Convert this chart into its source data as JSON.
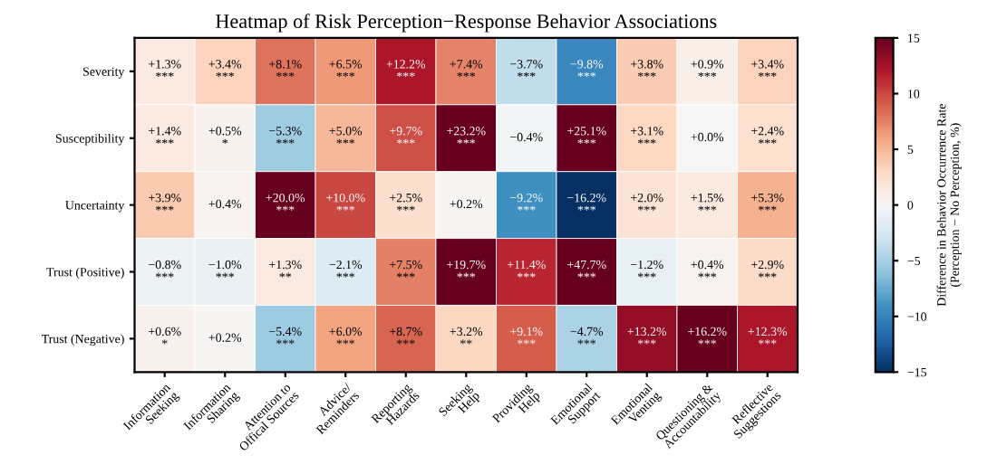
{
  "chart_data": {
    "type": "heatmap",
    "title": "Heatmap of Risk Perception−Response Behavior Associations",
    "clabel": "Difference in Behavior Occurrence Rate\n(Perception − No Perception, %)",
    "categories": [
      "Information\nSeeking",
      "Information\nSharing",
      "Attention to\nOffical Sources",
      "Advice/\nReminders",
      "Reporting\nHazards",
      "Seeking\nHelp",
      "Providing\nHelp",
      "Emotional\nSupport",
      "Emotional\nVenting",
      "Questioning &\nAccountability",
      "Reflective\nSuggestions"
    ],
    "y_categories": [
      "Severity",
      "Susceptibility",
      "Uncertainty",
      "Trust (Positive)",
      "Trust (Negative)"
    ],
    "cells": [
      [
        1.3,
        3.4,
        8.1,
        6.5,
        12.2,
        7.4,
        -3.7,
        -9.8,
        3.8,
        0.9,
        3.4
      ],
      [
        1.4,
        0.5,
        -5.3,
        5.0,
        9.7,
        23.2,
        -0.4,
        25.1,
        3.1,
        0.0,
        2.4
      ],
      [
        3.9,
        0.4,
        20.0,
        10.0,
        2.5,
        0.2,
        -9.2,
        -16.2,
        2.0,
        1.5,
        5.3
      ],
      [
        -0.8,
        -1.0,
        1.3,
        -2.1,
        7.5,
        19.7,
        11.4,
        47.7,
        -1.2,
        0.4,
        2.9
      ],
      [
        0.6,
        0.2,
        -5.4,
        6.0,
        8.7,
        3.2,
        9.1,
        -4.7,
        13.2,
        16.2,
        12.3
      ]
    ],
    "cell_labels": [
      [
        "+1.3%\n***",
        "+3.4%\n***",
        "+8.1%\n***",
        "+6.5%\n***",
        "+12.2%\n***",
        "+7.4%\n***",
        "−3.7%\n***",
        "−9.8%\n***",
        "+3.8%\n***",
        "+0.9%\n***",
        "+3.4%\n***"
      ],
      [
        "+1.4%\n***",
        "+0.5%\n*",
        "−5.3%\n***",
        "+5.0%\n***",
        "+9.7%\n***",
        "+23.2%\n***",
        "−0.4%",
        "+25.1%\n***",
        "+3.1%\n***",
        "+0.0%",
        "+2.4%\n***"
      ],
      [
        "+3.9%\n***",
        "+0.4%",
        "+20.0%\n***",
        "+10.0%\n***",
        "+2.5%\n***",
        "+0.2%",
        "−9.2%\n***",
        "−16.2%\n***",
        "+2.0%\n***",
        "+1.5%\n***",
        "+5.3%\n***"
      ],
      [
        "−0.8%\n***",
        "−1.0%\n***",
        "+1.3%\n**",
        "−2.1%\n***",
        "+7.5%\n***",
        "+19.7%\n***",
        "+11.4%\n***",
        "+47.7%\n***",
        "−1.2%\n***",
        "+0.4%\n***",
        "+2.9%\n***"
      ],
      [
        "+0.6%\n*",
        "+0.2%",
        "−5.4%\n***",
        "+6.0%\n***",
        "+8.7%\n***",
        "+3.2%\n**",
        "+9.1%\n***",
        "−4.7%\n***",
        "+13.2%\n***",
        "+16.2%\n***",
        "+12.3%\n***"
      ]
    ],
    "clim": [
      -15,
      15
    ],
    "cticks": [
      {
        "value": -15,
        "label": "−15"
      },
      {
        "value": -10,
        "label": "−10"
      },
      {
        "value": -5,
        "label": "−5"
      },
      0,
      5,
      10,
      15
    ]
  }
}
